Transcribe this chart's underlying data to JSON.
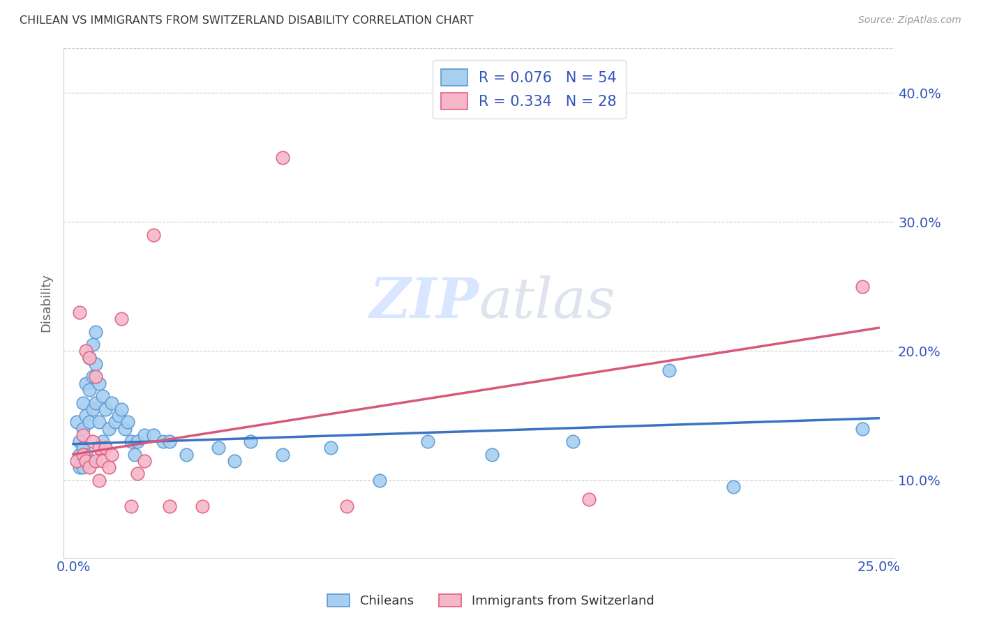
{
  "title": "CHILEAN VS IMMIGRANTS FROM SWITZERLAND DISABILITY CORRELATION CHART",
  "source": "Source: ZipAtlas.com",
  "x_tick_positions": [
    0.0,
    0.05,
    0.1,
    0.15,
    0.2,
    0.25
  ],
  "x_tick_labels": [
    "0.0%",
    "",
    "",
    "",
    "",
    "25.0%"
  ],
  "y_tick_positions": [
    0.1,
    0.2,
    0.3,
    0.4
  ],
  "y_tick_labels": [
    "10.0%",
    "20.0%",
    "30.0%",
    "40.0%"
  ],
  "xlim": [
    -0.003,
    0.255
  ],
  "ylim": [
    0.04,
    0.435
  ],
  "ylabel": "Disability",
  "legend_labels": [
    "Chileans",
    "Immigrants from Switzerland"
  ],
  "blue_R": "0.076",
  "blue_N": "54",
  "pink_R": "0.334",
  "pink_N": "28",
  "blue_color": "#A8CFF0",
  "pink_color": "#F5B8CB",
  "blue_edge_color": "#5B9BD5",
  "pink_edge_color": "#E06080",
  "blue_line_color": "#3A72C4",
  "pink_line_color": "#D85878",
  "watermark_zip": "ZIP",
  "watermark_atlas": "atlas",
  "blue_points_x": [
    0.001,
    0.002,
    0.002,
    0.002,
    0.003,
    0.003,
    0.003,
    0.003,
    0.004,
    0.004,
    0.004,
    0.005,
    0.005,
    0.005,
    0.005,
    0.006,
    0.006,
    0.006,
    0.007,
    0.007,
    0.007,
    0.008,
    0.008,
    0.009,
    0.009,
    0.01,
    0.01,
    0.011,
    0.012,
    0.013,
    0.014,
    0.015,
    0.016,
    0.017,
    0.018,
    0.019,
    0.02,
    0.022,
    0.025,
    0.028,
    0.03,
    0.035,
    0.045,
    0.05,
    0.055,
    0.065,
    0.08,
    0.095,
    0.11,
    0.13,
    0.155,
    0.185,
    0.205,
    0.245
  ],
  "blue_points_y": [
    0.145,
    0.13,
    0.12,
    0.11,
    0.16,
    0.14,
    0.125,
    0.11,
    0.175,
    0.15,
    0.12,
    0.195,
    0.17,
    0.145,
    0.115,
    0.205,
    0.18,
    0.155,
    0.215,
    0.19,
    0.16,
    0.175,
    0.145,
    0.165,
    0.13,
    0.155,
    0.125,
    0.14,
    0.16,
    0.145,
    0.15,
    0.155,
    0.14,
    0.145,
    0.13,
    0.12,
    0.13,
    0.135,
    0.135,
    0.13,
    0.13,
    0.12,
    0.125,
    0.115,
    0.13,
    0.12,
    0.125,
    0.1,
    0.13,
    0.12,
    0.13,
    0.185,
    0.095,
    0.14
  ],
  "pink_points_x": [
    0.001,
    0.002,
    0.003,
    0.003,
    0.004,
    0.004,
    0.005,
    0.005,
    0.006,
    0.007,
    0.007,
    0.008,
    0.008,
    0.009,
    0.01,
    0.011,
    0.012,
    0.015,
    0.018,
    0.02,
    0.022,
    0.025,
    0.03,
    0.04,
    0.065,
    0.085,
    0.16,
    0.245
  ],
  "pink_points_y": [
    0.115,
    0.23,
    0.135,
    0.12,
    0.2,
    0.115,
    0.195,
    0.11,
    0.13,
    0.18,
    0.115,
    0.125,
    0.1,
    0.115,
    0.125,
    0.11,
    0.12,
    0.225,
    0.08,
    0.105,
    0.115,
    0.29,
    0.08,
    0.08,
    0.35,
    0.08,
    0.085,
    0.25
  ],
  "blue_line_x": [
    0.0,
    0.25
  ],
  "blue_line_y": [
    0.128,
    0.148
  ],
  "pink_line_x": [
    0.0,
    0.25
  ],
  "pink_line_y": [
    0.12,
    0.218
  ]
}
